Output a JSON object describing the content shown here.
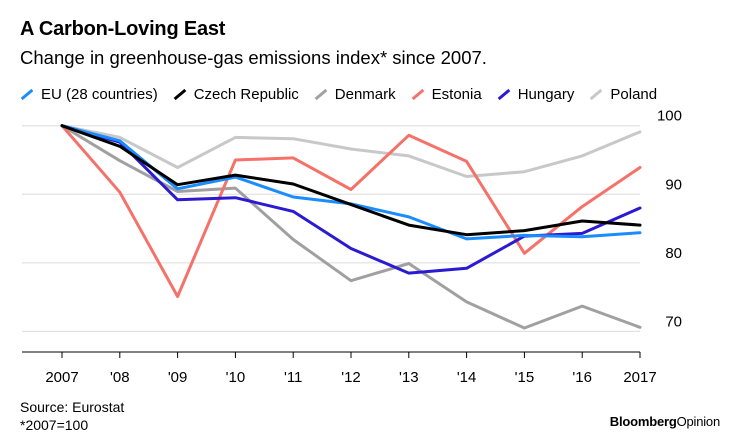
{
  "header": {
    "title": "A Carbon-Loving East",
    "subtitle": "Change in greenhouse-gas emissions index* since 2007."
  },
  "footer": {
    "source": "Source: Eurostat",
    "note": "*2007=100",
    "brand_a": "Bloomberg",
    "brand_b": "Opinion"
  },
  "chart_data": {
    "type": "line",
    "title": "A Carbon-Loving East",
    "subtitle": "Change in greenhouse-gas emissions index* since 2007.",
    "x": [
      "2007",
      "'08",
      "'09",
      "'10",
      "'11",
      "'12",
      "'13",
      "'14",
      "'15",
      "'16",
      "2017"
    ],
    "y_ticks": [
      "70",
      "80",
      "90",
      "100"
    ],
    "ylim": [
      67,
      102
    ],
    "grid": true,
    "legend_position": "top",
    "series": [
      {
        "name": "Poland",
        "color": "#c8c8c8",
        "values": [
          100,
          98.3,
          93.9,
          98.3,
          98.1,
          96.6,
          95.6,
          92.6,
          93.3,
          95.6,
          99.1
        ]
      },
      {
        "name": "Denmark",
        "color": "#a0a0a0",
        "values": [
          100,
          94.9,
          90.4,
          90.9,
          83.4,
          77.4,
          79.9,
          74.3,
          70.5,
          73.7,
          70.6
        ]
      },
      {
        "name": "Estonia",
        "color": "#f4726a",
        "values": [
          100,
          90.3,
          75.1,
          95.0,
          95.3,
          90.7,
          98.6,
          94.8,
          81.4,
          88.2,
          93.9
        ]
      },
      {
        "name": "Hungary",
        "color": "#2b1ad1",
        "values": [
          100,
          97.6,
          89.2,
          89.5,
          87.5,
          82.1,
          78.5,
          79.2,
          83.9,
          84.3,
          88.0
        ]
      },
      {
        "name": "EU (28 countries)",
        "color": "#1a8cff",
        "values": [
          100,
          97.8,
          90.8,
          92.5,
          89.6,
          88.6,
          86.7,
          83.5,
          84.0,
          83.8,
          84.4
        ]
      },
      {
        "name": "Czech Republic",
        "color": "#000000",
        "values": [
          100,
          97.0,
          91.4,
          92.8,
          91.5,
          88.5,
          85.5,
          84.1,
          84.7,
          86.1,
          85.5
        ]
      }
    ]
  },
  "legend": [
    {
      "label": "EU (28 countries)",
      "color": "#1a8cff"
    },
    {
      "label": "Czech Republic",
      "color": "#000000"
    },
    {
      "label": "Denmark",
      "color": "#a0a0a0"
    },
    {
      "label": "Estonia",
      "color": "#f4726a"
    },
    {
      "label": "Hungary",
      "color": "#2b1ad1"
    },
    {
      "label": "Poland",
      "color": "#c8c8c8"
    }
  ]
}
